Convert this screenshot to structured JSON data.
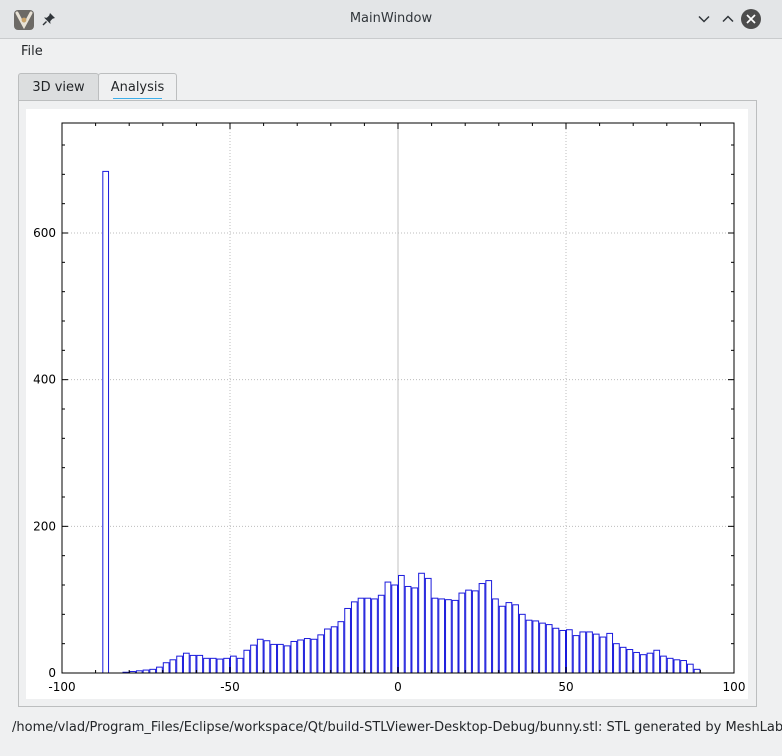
{
  "window": {
    "title": "MainWindow",
    "icons": [
      "app-logo-icon",
      "pin-icon",
      "minimize-icon",
      "maximize-icon",
      "close-icon"
    ]
  },
  "menu": {
    "file_label": "File"
  },
  "tabs": [
    {
      "label": "3D view",
      "active": false
    },
    {
      "label": "Analysis",
      "active": true
    }
  ],
  "status": {
    "text": "/home/vlad/Program_Files/Eclipse/workspace/Qt/build-STLViewer-Desktop-Debug/bunny.stl: STL generated by MeshLab"
  },
  "colors": {
    "bar_stroke": "#1a1adc",
    "accent": "#3daee9"
  },
  "chart_data": {
    "type": "bar",
    "grid": true,
    "xlim": [
      -100,
      100
    ],
    "ylim": [
      0,
      750
    ],
    "x_ticks": [
      "-100",
      "-50",
      "0",
      "50",
      "100"
    ],
    "y_ticks": [
      "0",
      "200",
      "400",
      "600"
    ],
    "bin_width": 2,
    "bins": [
      [
        -88,
        684
      ],
      [
        -86,
        0
      ],
      [
        -84,
        0
      ],
      [
        -82,
        1
      ],
      [
        -80,
        2
      ],
      [
        -78,
        3
      ],
      [
        -76,
        4
      ],
      [
        -74,
        5
      ],
      [
        -72,
        8
      ],
      [
        -70,
        14
      ],
      [
        -68,
        18
      ],
      [
        -66,
        23
      ],
      [
        -64,
        27
      ],
      [
        -62,
        24
      ],
      [
        -60,
        24
      ],
      [
        -58,
        20
      ],
      [
        -56,
        20
      ],
      [
        -54,
        19
      ],
      [
        -52,
        20
      ],
      [
        -50,
        23
      ],
      [
        -48,
        20
      ],
      [
        -46,
        31
      ],
      [
        -44,
        38
      ],
      [
        -42,
        46
      ],
      [
        -40,
        44
      ],
      [
        -38,
        39
      ],
      [
        -36,
        39
      ],
      [
        -34,
        37
      ],
      [
        -32,
        43
      ],
      [
        -30,
        45
      ],
      [
        -28,
        47
      ],
      [
        -26,
        46
      ],
      [
        -24,
        52
      ],
      [
        -22,
        60
      ],
      [
        -20,
        63
      ],
      [
        -18,
        70
      ],
      [
        -16,
        88
      ],
      [
        -14,
        97
      ],
      [
        -12,
        102
      ],
      [
        -10,
        102
      ],
      [
        -8,
        101
      ],
      [
        -6,
        106
      ],
      [
        -4,
        124
      ],
      [
        -2,
        120
      ],
      [
        0,
        133
      ],
      [
        2,
        118
      ],
      [
        4,
        116
      ],
      [
        6,
        136
      ],
      [
        8,
        129
      ],
      [
        10,
        102
      ],
      [
        12,
        101
      ],
      [
        14,
        100
      ],
      [
        16,
        99
      ],
      [
        18,
        109
      ],
      [
        20,
        113
      ],
      [
        22,
        112
      ],
      [
        24,
        122
      ],
      [
        26,
        126
      ],
      [
        28,
        101
      ],
      [
        30,
        91
      ],
      [
        32,
        96
      ],
      [
        34,
        93
      ],
      [
        36,
        80
      ],
      [
        38,
        72
      ],
      [
        40,
        71
      ],
      [
        42,
        68
      ],
      [
        44,
        66
      ],
      [
        46,
        61
      ],
      [
        48,
        58
      ],
      [
        50,
        59
      ],
      [
        52,
        51
      ],
      [
        54,
        56
      ],
      [
        56,
        56
      ],
      [
        58,
        53
      ],
      [
        60,
        49
      ],
      [
        62,
        54
      ],
      [
        64,
        40
      ],
      [
        66,
        35
      ],
      [
        68,
        32
      ],
      [
        70,
        28
      ],
      [
        72,
        25
      ],
      [
        74,
        27
      ],
      [
        76,
        31
      ],
      [
        78,
        23
      ],
      [
        80,
        20
      ],
      [
        82,
        18
      ],
      [
        84,
        17
      ],
      [
        86,
        12
      ],
      [
        88,
        5
      ]
    ]
  }
}
